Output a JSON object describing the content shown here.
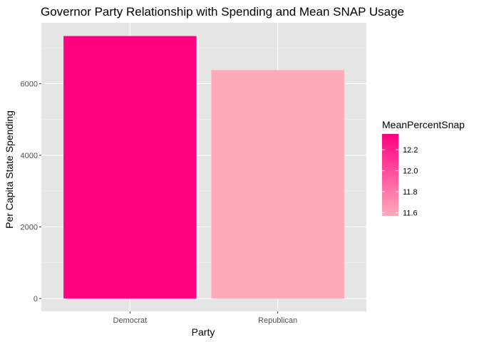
{
  "chart_data": {
    "type": "bar",
    "title": "Governor Party Relationship with Spending and Mean SNAP Usage",
    "xlabel": "Party",
    "ylabel": "Per Capita State Spending",
    "categories": [
      "Democrat",
      "Republican"
    ],
    "values": [
      7330,
      6380
    ],
    "fill_values": [
      12.35,
      11.57
    ],
    "ylim": [
      -360,
      7700
    ],
    "y_ticks": [
      0,
      2000,
      4000,
      6000
    ],
    "grid": true,
    "background": "#e5e5e5",
    "legend": {
      "title": "MeanPercentSnap",
      "placement": "right",
      "ticks": [
        11.6,
        11.8,
        12.0,
        12.2
      ],
      "range": [
        11.57,
        12.35
      ],
      "color_low": "#ffaabb",
      "color_high": "#ff0080"
    }
  }
}
